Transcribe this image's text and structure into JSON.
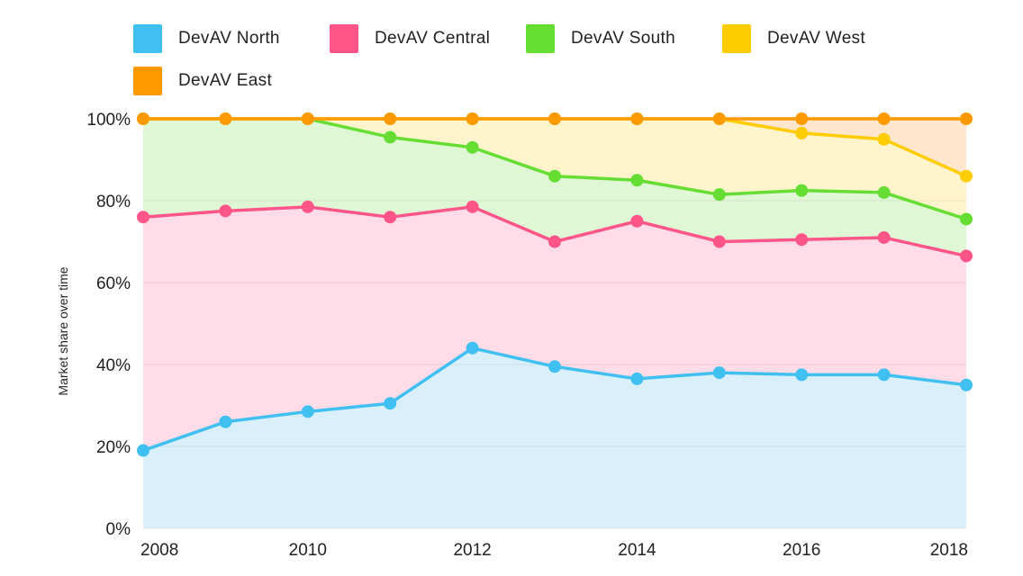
{
  "chart_data": {
    "type": "area",
    "stacked": "100%",
    "title": "",
    "xlabel": "",
    "ylabel": "Market share over time",
    "x": [
      2008,
      2009,
      2010,
      2011,
      2012,
      2013,
      2014,
      2015,
      2016,
      2017,
      2018
    ],
    "x_ticks": [
      "2008",
      "2010",
      "2012",
      "2014",
      "2016",
      "2018"
    ],
    "y_ticks": [
      "0%",
      "20%",
      "40%",
      "60%",
      "80%",
      "100%"
    ],
    "ylim": [
      0,
      100
    ],
    "legend_position": "top-left",
    "series": [
      {
        "name": "DevAV North",
        "color": "#40C0F0",
        "fill": "#D9F0FB",
        "cumulative": [
          19,
          26,
          28.5,
          30.5,
          44,
          39.5,
          36.5,
          38,
          37.5,
          37.5,
          35
        ]
      },
      {
        "name": "DevAV Central",
        "color": "#FF5588",
        "fill": "#FFDCE7",
        "cumulative": [
          76,
          77.5,
          78.5,
          76,
          78.5,
          70,
          75,
          70,
          70.5,
          71,
          66.5
        ]
      },
      {
        "name": "DevAV South",
        "color": "#66DD33",
        "fill": "#E0F7D6",
        "cumulative": [
          100,
          100,
          100,
          95.5,
          93,
          86,
          85,
          81.5,
          82.5,
          82,
          75.5
        ]
      },
      {
        "name": "DevAV West",
        "color": "#FFCC00",
        "fill": "#FFF4CC",
        "cumulative": [
          100,
          100,
          100,
          100,
          100,
          100,
          100,
          100,
          96.5,
          95,
          86
        ]
      },
      {
        "name": "DevAV East",
        "color": "#FF9900",
        "fill": "#FFE6CC",
        "cumulative": [
          100,
          100,
          100,
          100,
          100,
          100,
          100,
          100,
          100,
          100,
          100
        ]
      }
    ]
  }
}
